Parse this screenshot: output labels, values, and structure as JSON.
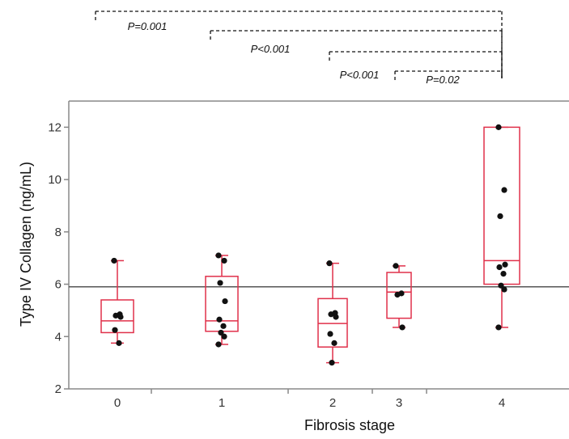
{
  "chart_data": {
    "type": "box",
    "xlabel": "Fibrosis stage",
    "ylabel": "Type IV Collagen (ng/mL)",
    "ylim": [
      2,
      13
    ],
    "yticks": [
      2,
      4,
      6,
      8,
      10,
      12
    ],
    "reference_line": 5.9,
    "colors": {
      "box": "#e0304a",
      "point": "#111111",
      "axis": "#888888",
      "reference": "#555555"
    },
    "categories": [
      {
        "label": "0",
        "min": 3.75,
        "q1": 4.15,
        "median": 4.6,
        "q3": 5.4,
        "max": 6.9,
        "points": [
          6.9,
          4.85,
          4.8,
          4.75,
          4.25,
          3.75
        ]
      },
      {
        "label": "1",
        "min": 3.7,
        "q1": 4.2,
        "median": 4.6,
        "q3": 6.3,
        "max": 7.1,
        "points": [
          7.1,
          6.9,
          6.05,
          5.35,
          4.65,
          4.4,
          4.15,
          4.0,
          3.7
        ]
      },
      {
        "label": "2",
        "min": 3.0,
        "q1": 3.6,
        "median": 4.5,
        "q3": 5.45,
        "max": 6.8,
        "points": [
          6.8,
          4.9,
          4.85,
          4.75,
          4.1,
          3.75,
          3.0
        ]
      },
      {
        "label": "3",
        "min": 4.35,
        "q1": 4.7,
        "median": 5.7,
        "q3": 6.45,
        "max": 6.7,
        "points": [
          6.7,
          5.65,
          5.6,
          4.35
        ]
      },
      {
        "label": "4",
        "min": 4.35,
        "q1": 6.0,
        "median": 6.9,
        "q3": 12.0,
        "max": 12.0,
        "points": [
          12.0,
          9.6,
          8.6,
          6.75,
          6.65,
          6.4,
          5.95,
          5.8,
          4.35
        ]
      }
    ],
    "comparisons": [
      {
        "from": "0",
        "to": "4",
        "label": "P=0.001"
      },
      {
        "from": "1",
        "to": "4",
        "label": "P<0.001"
      },
      {
        "from": "2",
        "to": "4",
        "label": "P<0.001"
      },
      {
        "from": "3",
        "to": "4",
        "label": "P=0.02"
      }
    ]
  }
}
